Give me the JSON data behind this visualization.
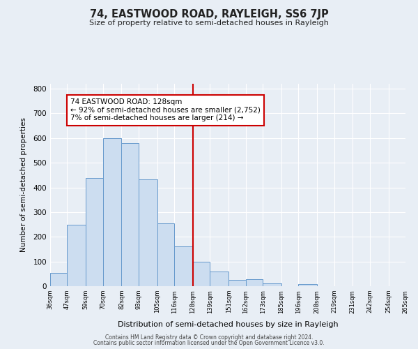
{
  "title": "74, EASTWOOD ROAD, RAYLEIGH, SS6 7JP",
  "subtitle": "Size of property relative to semi-detached houses in Rayleigh",
  "xlabel": "Distribution of semi-detached houses by size in Rayleigh",
  "ylabel": "Number of semi-detached properties",
  "bar_edges": [
    36,
    47,
    59,
    70,
    82,
    93,
    105,
    116,
    128,
    139,
    151,
    162,
    173,
    185,
    196,
    208,
    219,
    231,
    242,
    254,
    265
  ],
  "bar_heights": [
    55,
    248,
    438,
    600,
    580,
    432,
    255,
    160,
    98,
    60,
    25,
    28,
    10,
    0,
    8,
    0,
    0,
    0,
    0,
    0
  ],
  "tick_labels": [
    "36sqm",
    "47sqm",
    "59sqm",
    "70sqm",
    "82sqm",
    "93sqm",
    "105sqm",
    "116sqm",
    "128sqm",
    "139sqm",
    "151sqm",
    "162sqm",
    "173sqm",
    "185sqm",
    "196sqm",
    "208sqm",
    "219sqm",
    "231sqm",
    "242sqm",
    "254sqm",
    "265sqm"
  ],
  "property_size": 128,
  "bar_color": "#ccddf0",
  "bar_edge_color": "#6699cc",
  "vline_color": "#cc0000",
  "annotation_box_edge": "#cc0000",
  "annotation_text_line1": "74 EASTWOOD ROAD: 128sqm",
  "annotation_text_line2": "← 92% of semi-detached houses are smaller (2,752)",
  "annotation_text_line3": "7% of semi-detached houses are larger (214) →",
  "footer_line1": "Contains HM Land Registry data © Crown copyright and database right 2024.",
  "footer_line2": "Contains public sector information licensed under the Open Government Licence v3.0.",
  "ylim": [
    0,
    820
  ],
  "background_color": "#e8eef5",
  "grid_color": "#ffffff",
  "text_color": "#222222"
}
